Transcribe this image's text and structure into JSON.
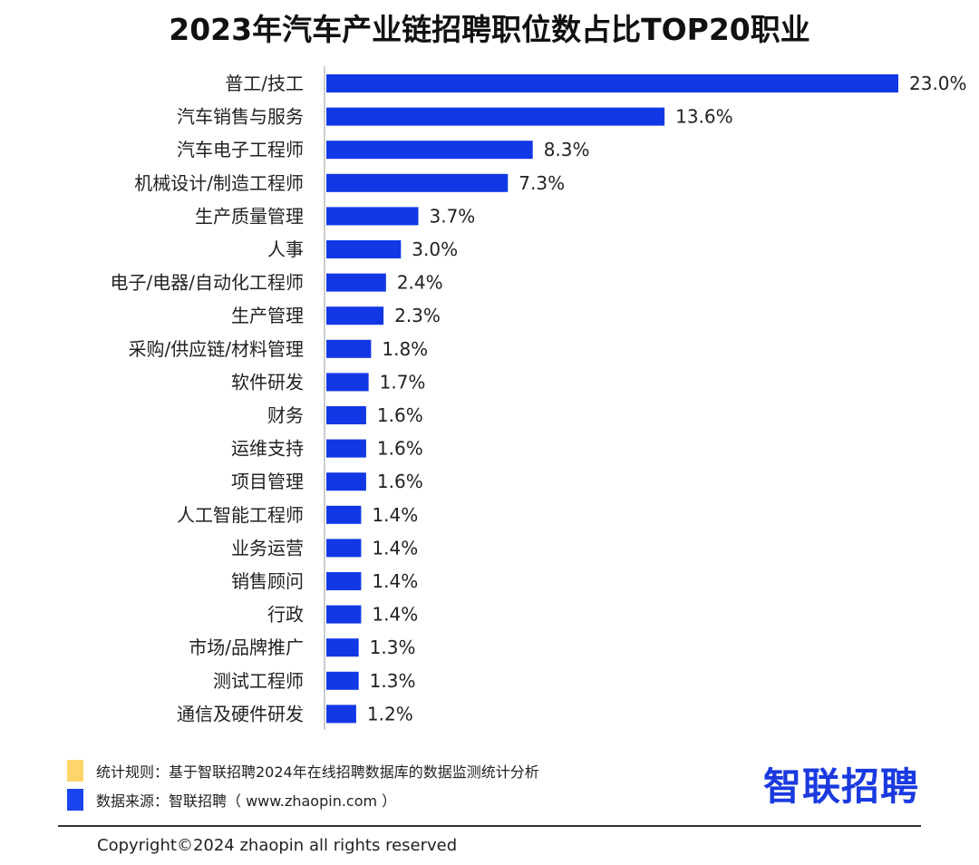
{
  "chart_data": {
    "type": "bar",
    "orientation": "horizontal",
    "title": "2023年汽车产业链招聘职位数占比TOP20职业",
    "categories": [
      "普工/技工",
      "汽车销售与服务",
      "汽车电子工程师",
      "机械设计/制造工程师",
      "生产质量管理",
      "人事",
      "电子/电器/自动化工程师",
      "生产管理",
      "采购/供应链/材料管理",
      "软件研发",
      "财务",
      "运维支持",
      "项目管理",
      "人工智能工程师",
      "业务运营",
      "销售顾问",
      "行政",
      "市场/品牌推广",
      "测试工程师",
      "通信及硬件研发"
    ],
    "values": [
      23.0,
      13.6,
      8.3,
      7.3,
      3.7,
      3.0,
      2.4,
      2.3,
      1.8,
      1.7,
      1.6,
      1.6,
      1.6,
      1.4,
      1.4,
      1.4,
      1.4,
      1.3,
      1.3,
      1.2
    ],
    "value_suffix": "%",
    "xlabel": "",
    "ylabel": "",
    "xlim": [
      0,
      23.0
    ],
    "grid": false,
    "bar_color": "#1238e6"
  },
  "legend": [
    {
      "text": "统计规则：基于智联招聘2024年在线招聘数据库的数据监测统计分析",
      "color": "#fdd56a"
    },
    {
      "text": "数据来源：智联招聘（ www.zhaopin.com ）",
      "color": "#1a44f0"
    }
  ],
  "logo": "智联招聘",
  "copyright": "Copyright©2024 zhaopin all rights reserved"
}
